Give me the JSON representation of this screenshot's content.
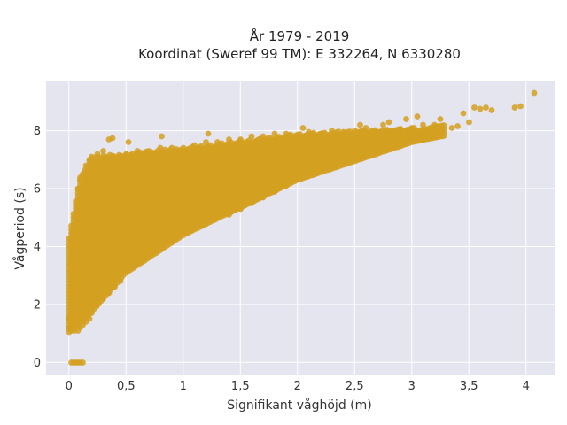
{
  "chart_data": {
    "type": "scatter",
    "title_line1": "År 1979 - 2019",
    "title_line2": "Koordinat (Sweref 99 TM): E 332264, N 6330280",
    "xlabel": "Signifikant våghöjd (m)",
    "ylabel": "Vågperiod (s)",
    "xlim": [
      -0.2,
      4.25
    ],
    "ylim": [
      -0.45,
      9.7
    ],
    "x_ticks": [
      0,
      0.5,
      1,
      1.5,
      2,
      2.5,
      3,
      3.5,
      4
    ],
    "x_tick_labels": [
      "0",
      "0,5",
      "1",
      "1,5",
      "2",
      "2,5",
      "3",
      "3,5",
      "4"
    ],
    "y_ticks": [
      0,
      2,
      4,
      6,
      8
    ],
    "y_tick_labels": [
      "0",
      "2",
      "4",
      "6",
      "8"
    ],
    "grid": true,
    "legend": "none",
    "colors": {
      "marker": "#d4a020",
      "plot_background": "#e5e5ef",
      "grid": "#ffffff"
    },
    "series": [
      {
        "points": [
          [
            0.02,
            0.0
          ],
          [
            0.04,
            0.0
          ],
          [
            0.06,
            0.0
          ],
          [
            0.08,
            0.0
          ],
          [
            0.1,
            0.0
          ],
          [
            0.12,
            0.0
          ],
          [
            0.0,
            1.2
          ],
          [
            0.0,
            1.5
          ],
          [
            0.02,
            1.1
          ],
          [
            0.03,
            2.0
          ],
          [
            0.02,
            2.8
          ],
          [
            0.03,
            3.2
          ],
          [
            0.02,
            4.3
          ],
          [
            0.03,
            4.5
          ],
          [
            0.05,
            1.1
          ],
          [
            0.05,
            1.6
          ],
          [
            0.05,
            2.4
          ],
          [
            0.05,
            3.0
          ],
          [
            0.05,
            3.8
          ],
          [
            0.05,
            4.6
          ],
          [
            0.05,
            5.0
          ],
          [
            0.08,
            1.1
          ],
          [
            0.08,
            1.8
          ],
          [
            0.08,
            2.6
          ],
          [
            0.08,
            3.4
          ],
          [
            0.08,
            4.2
          ],
          [
            0.08,
            5.0
          ],
          [
            0.08,
            5.5
          ],
          [
            0.08,
            6.0
          ],
          [
            0.1,
            1.2
          ],
          [
            0.1,
            2.0
          ],
          [
            0.1,
            2.8
          ],
          [
            0.1,
            3.6
          ],
          [
            0.1,
            4.4
          ],
          [
            0.1,
            5.2
          ],
          [
            0.1,
            5.8
          ],
          [
            0.1,
            6.3
          ],
          [
            0.12,
            1.3
          ],
          [
            0.12,
            2.2
          ],
          [
            0.12,
            3.0
          ],
          [
            0.12,
            3.9
          ],
          [
            0.12,
            4.7
          ],
          [
            0.12,
            5.5
          ],
          [
            0.12,
            6.1
          ],
          [
            0.12,
            6.5
          ],
          [
            0.15,
            1.4
          ],
          [
            0.15,
            2.3
          ],
          [
            0.15,
            3.2
          ],
          [
            0.15,
            4.0
          ],
          [
            0.15,
            4.8
          ],
          [
            0.15,
            5.6
          ],
          [
            0.15,
            6.3
          ],
          [
            0.15,
            6.8
          ],
          [
            0.18,
            1.5
          ],
          [
            0.18,
            2.4
          ],
          [
            0.18,
            3.3
          ],
          [
            0.18,
            4.2
          ],
          [
            0.18,
            5.0
          ],
          [
            0.18,
            5.8
          ],
          [
            0.18,
            6.5
          ],
          [
            0.18,
            7.0
          ],
          [
            0.2,
            1.7
          ],
          [
            0.2,
            2.6
          ],
          [
            0.2,
            3.5
          ],
          [
            0.2,
            4.4
          ],
          [
            0.2,
            5.2
          ],
          [
            0.2,
            6.0
          ],
          [
            0.2,
            6.7
          ],
          [
            0.2,
            7.1
          ],
          [
            0.25,
            2.0
          ],
          [
            0.25,
            2.9
          ],
          [
            0.25,
            3.8
          ],
          [
            0.25,
            4.6
          ],
          [
            0.25,
            5.4
          ],
          [
            0.25,
            6.2
          ],
          [
            0.25,
            6.9
          ],
          [
            0.25,
            7.2
          ],
          [
            0.3,
            2.2
          ],
          [
            0.3,
            3.1
          ],
          [
            0.3,
            4.0
          ],
          [
            0.3,
            4.8
          ],
          [
            0.3,
            5.6
          ],
          [
            0.3,
            6.3
          ],
          [
            0.3,
            7.0
          ],
          [
            0.3,
            7.3
          ],
          [
            0.35,
            2.4
          ],
          [
            0.35,
            3.3
          ],
          [
            0.35,
            4.1
          ],
          [
            0.35,
            5.0
          ],
          [
            0.35,
            5.7
          ],
          [
            0.35,
            6.4
          ],
          [
            0.35,
            7.0
          ],
          [
            0.35,
            7.7
          ],
          [
            0.4,
            2.6
          ],
          [
            0.4,
            3.4
          ],
          [
            0.4,
            4.3
          ],
          [
            0.4,
            5.1
          ],
          [
            0.4,
            5.8
          ],
          [
            0.4,
            6.5
          ],
          [
            0.4,
            7.1
          ],
          [
            0.38,
            7.75
          ],
          [
            0.45,
            2.8
          ],
          [
            0.45,
            3.6
          ],
          [
            0.45,
            4.4
          ],
          [
            0.45,
            5.2
          ],
          [
            0.45,
            5.9
          ],
          [
            0.45,
            6.6
          ],
          [
            0.45,
            7.1
          ],
          [
            0.5,
            3.1
          ],
          [
            0.5,
            3.8
          ],
          [
            0.5,
            4.5
          ],
          [
            0.5,
            5.3
          ],
          [
            0.5,
            6.0
          ],
          [
            0.5,
            6.7
          ],
          [
            0.5,
            7.2
          ],
          [
            0.52,
            7.6
          ],
          [
            0.6,
            3.5
          ],
          [
            0.6,
            4.2
          ],
          [
            0.6,
            4.9
          ],
          [
            0.6,
            5.6
          ],
          [
            0.6,
            6.2
          ],
          [
            0.6,
            6.8
          ],
          [
            0.6,
            7.3
          ],
          [
            0.7,
            3.8
          ],
          [
            0.7,
            4.4
          ],
          [
            0.7,
            5.1
          ],
          [
            0.7,
            5.7
          ],
          [
            0.7,
            6.3
          ],
          [
            0.7,
            6.9
          ],
          [
            0.7,
            7.3
          ],
          [
            0.8,
            4.0
          ],
          [
            0.8,
            4.6
          ],
          [
            0.8,
            5.2
          ],
          [
            0.8,
            5.8
          ],
          [
            0.8,
            6.4
          ],
          [
            0.8,
            7.0
          ],
          [
            0.8,
            7.4
          ],
          [
            0.81,
            7.8
          ],
          [
            0.9,
            4.2
          ],
          [
            0.9,
            4.8
          ],
          [
            0.9,
            5.4
          ],
          [
            0.9,
            6.0
          ],
          [
            0.9,
            6.5
          ],
          [
            0.9,
            7.0
          ],
          [
            0.9,
            7.4
          ],
          [
            1.0,
            4.4
          ],
          [
            1.0,
            5.0
          ],
          [
            1.0,
            5.5
          ],
          [
            1.0,
            6.0
          ],
          [
            1.0,
            6.5
          ],
          [
            1.0,
            7.0
          ],
          [
            1.0,
            7.4
          ],
          [
            1.1,
            4.6
          ],
          [
            1.1,
            5.1
          ],
          [
            1.1,
            5.6
          ],
          [
            1.1,
            6.1
          ],
          [
            1.1,
            6.6
          ],
          [
            1.1,
            7.1
          ],
          [
            1.1,
            7.5
          ],
          [
            1.2,
            4.8
          ],
          [
            1.2,
            5.3
          ],
          [
            1.2,
            5.8
          ],
          [
            1.2,
            6.2
          ],
          [
            1.2,
            6.7
          ],
          [
            1.2,
            7.2
          ],
          [
            1.2,
            7.6
          ],
          [
            1.22,
            7.9
          ],
          [
            1.3,
            5.0
          ],
          [
            1.3,
            5.4
          ],
          [
            1.3,
            5.9
          ],
          [
            1.3,
            6.3
          ],
          [
            1.3,
            6.7
          ],
          [
            1.3,
            7.2
          ],
          [
            1.3,
            7.6
          ],
          [
            1.4,
            5.1
          ],
          [
            1.4,
            5.5
          ],
          [
            1.4,
            5.9
          ],
          [
            1.4,
            6.4
          ],
          [
            1.4,
            6.8
          ],
          [
            1.4,
            7.3
          ],
          [
            1.4,
            7.7
          ],
          [
            1.5,
            5.3
          ],
          [
            1.5,
            5.7
          ],
          [
            1.5,
            6.1
          ],
          [
            1.5,
            6.5
          ],
          [
            1.5,
            6.9
          ],
          [
            1.5,
            7.3
          ],
          [
            1.5,
            7.7
          ],
          [
            1.6,
            5.5
          ],
          [
            1.6,
            5.9
          ],
          [
            1.6,
            6.2
          ],
          [
            1.6,
            6.6
          ],
          [
            1.6,
            7.0
          ],
          [
            1.6,
            7.4
          ],
          [
            1.6,
            7.8
          ],
          [
            1.7,
            5.7
          ],
          [
            1.7,
            6.0
          ],
          [
            1.7,
            6.4
          ],
          [
            1.7,
            6.7
          ],
          [
            1.7,
            7.1
          ],
          [
            1.7,
            7.5
          ],
          [
            1.7,
            7.8
          ],
          [
            1.8,
            5.9
          ],
          [
            1.8,
            6.2
          ],
          [
            1.8,
            6.5
          ],
          [
            1.8,
            6.9
          ],
          [
            1.8,
            7.2
          ],
          [
            1.8,
            7.6
          ],
          [
            1.8,
            7.9
          ],
          [
            1.9,
            6.1
          ],
          [
            1.9,
            6.4
          ],
          [
            1.9,
            6.7
          ],
          [
            1.9,
            7.0
          ],
          [
            1.9,
            7.3
          ],
          [
            1.9,
            7.6
          ],
          [
            1.9,
            7.9
          ],
          [
            2.0,
            6.3
          ],
          [
            2.0,
            6.6
          ],
          [
            2.0,
            6.9
          ],
          [
            2.0,
            7.2
          ],
          [
            2.0,
            7.5
          ],
          [
            2.0,
            7.8
          ],
          [
            2.05,
            8.1
          ],
          [
            2.1,
            6.5
          ],
          [
            2.1,
            6.8
          ],
          [
            2.1,
            7.1
          ],
          [
            2.1,
            7.4
          ],
          [
            2.1,
            7.7
          ],
          [
            2.1,
            7.95
          ],
          [
            2.2,
            6.7
          ],
          [
            2.2,
            7.0
          ],
          [
            2.2,
            7.3
          ],
          [
            2.2,
            7.6
          ],
          [
            2.2,
            7.9
          ],
          [
            2.3,
            6.9
          ],
          [
            2.3,
            7.2
          ],
          [
            2.3,
            7.5
          ],
          [
            2.3,
            7.8
          ],
          [
            2.3,
            8.0
          ],
          [
            2.4,
            7.1
          ],
          [
            2.4,
            7.4
          ],
          [
            2.4,
            7.7
          ],
          [
            2.4,
            7.95
          ],
          [
            2.5,
            7.2
          ],
          [
            2.5,
            7.5
          ],
          [
            2.5,
            7.8
          ],
          [
            2.5,
            8.0
          ],
          [
            2.55,
            8.2
          ],
          [
            2.6,
            7.3
          ],
          [
            2.6,
            7.6
          ],
          [
            2.6,
            7.9
          ],
          [
            2.6,
            8.1
          ],
          [
            2.7,
            7.4
          ],
          [
            2.7,
            7.7
          ],
          [
            2.7,
            7.95
          ],
          [
            2.75,
            8.2
          ],
          [
            2.8,
            7.5
          ],
          [
            2.8,
            7.8
          ],
          [
            2.8,
            8.0
          ],
          [
            2.8,
            8.3
          ],
          [
            2.9,
            7.55
          ],
          [
            2.9,
            7.8
          ],
          [
            2.9,
            8.05
          ],
          [
            2.95,
            8.4
          ],
          [
            3.0,
            7.6
          ],
          [
            3.0,
            7.9
          ],
          [
            3.0,
            8.1
          ],
          [
            3.05,
            8.5
          ],
          [
            3.1,
            7.7
          ],
          [
            3.1,
            7.95
          ],
          [
            3.1,
            8.2
          ],
          [
            3.2,
            7.8
          ],
          [
            3.2,
            8.0
          ],
          [
            3.2,
            8.2
          ],
          [
            3.25,
            8.4
          ],
          [
            3.35,
            8.1
          ],
          [
            3.4,
            8.15
          ],
          [
            3.45,
            8.6
          ],
          [
            3.5,
            8.3
          ],
          [
            3.55,
            8.8
          ],
          [
            3.6,
            8.75
          ],
          [
            3.65,
            8.8
          ],
          [
            3.7,
            8.7
          ],
          [
            3.9,
            8.8
          ],
          [
            3.95,
            8.85
          ],
          [
            4.07,
            9.3
          ]
        ]
      }
    ]
  }
}
